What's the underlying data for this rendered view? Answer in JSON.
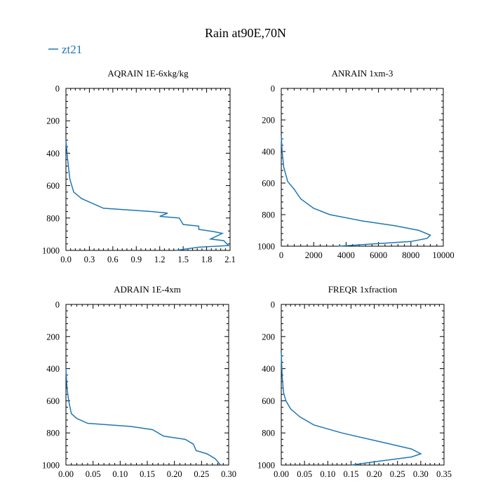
{
  "title": "Rain at90E,70N",
  "legend": {
    "label": "zt21",
    "color": "#1f77b4"
  },
  "chart_data": [
    {
      "type": "line",
      "title": "AQRAIN  1E-6xkg/kg",
      "xlim": [
        0,
        2.1
      ],
      "ylim": [
        1000,
        0
      ],
      "xticks": [
        0,
        0.3,
        0.6,
        0.9,
        1.2,
        1.5,
        1.8,
        2.1
      ],
      "xtick_labels": [
        "0.0",
        "0.3",
        "0.6",
        "0.9",
        "1.2",
        "1.5",
        "1.8",
        "2.1"
      ],
      "yticks": [
        0,
        200,
        400,
        600,
        800,
        1000
      ],
      "ytick_labels": [
        "0",
        "200",
        "400",
        "600",
        "800",
        "1000"
      ],
      "series": [
        {
          "name": "zt21",
          "x": [
            0,
            0.02,
            0.05,
            0.1,
            0.2,
            0.48,
            1.1,
            1.3,
            1.2,
            1.45,
            1.5,
            1.7,
            1.7,
            1.9,
            2.0,
            1.85,
            2.02,
            2.08,
            1.7,
            1.4
          ],
          "y": [
            320,
            430,
            560,
            640,
            680,
            740,
            760,
            770,
            790,
            800,
            840,
            850,
            870,
            885,
            895,
            930,
            940,
            970,
            980,
            1000
          ]
        }
      ]
    },
    {
      "type": "line",
      "title": "ANRAIN  1xm-3",
      "xlim": [
        0,
        10000
      ],
      "ylim": [
        1000,
        0
      ],
      "xticks": [
        0,
        2000,
        4000,
        6000,
        8000,
        10000
      ],
      "xtick_labels": [
        "0",
        "2000",
        "4000",
        "6000",
        "8000",
        "10000"
      ],
      "yticks": [
        0,
        200,
        400,
        600,
        800,
        1000
      ],
      "ytick_labels": [
        "0",
        "200",
        "400",
        "600",
        "800",
        "1000"
      ],
      "series": [
        {
          "name": "zt21",
          "x": [
            0,
            50,
            150,
            400,
            800,
            1200,
            2000,
            3000,
            5000,
            7000,
            8500,
            9200,
            9000,
            8000,
            5000,
            3500
          ],
          "y": [
            300,
            400,
            500,
            590,
            640,
            700,
            760,
            800,
            840,
            870,
            900,
            930,
            950,
            970,
            990,
            1000
          ]
        }
      ]
    },
    {
      "type": "line",
      "title": "ADRAIN  1E-4xm",
      "xlim": [
        0,
        0.3
      ],
      "ylim": [
        1000,
        0
      ],
      "xticks": [
        0,
        0.05,
        0.1,
        0.15,
        0.2,
        0.25,
        0.3
      ],
      "xtick_labels": [
        "0.00",
        "0.05",
        "0.10",
        "0.15",
        "0.20",
        "0.25",
        "0.30"
      ],
      "yticks": [
        0,
        200,
        400,
        600,
        800,
        1000
      ],
      "ytick_labels": [
        "0",
        "200",
        "400",
        "600",
        "800",
        "1000"
      ],
      "series": [
        {
          "name": "zt21",
          "x": [
            0,
            0.002,
            0.005,
            0.01,
            0.02,
            0.04,
            0.12,
            0.16,
            0.18,
            0.22,
            0.235,
            0.24,
            0.26,
            0.275,
            0.285
          ],
          "y": [
            400,
            520,
            600,
            680,
            710,
            740,
            760,
            780,
            820,
            840,
            870,
            910,
            930,
            960,
            1000
          ]
        }
      ]
    },
    {
      "type": "line",
      "title": "FREQR  1xfraction",
      "xlim": [
        0,
        0.35
      ],
      "ylim": [
        1000,
        0
      ],
      "xticks": [
        0,
        0.05,
        0.1,
        0.15,
        0.2,
        0.25,
        0.3,
        0.35
      ],
      "xtick_labels": [
        "0.00",
        "0.05",
        "0.10",
        "0.15",
        "0.20",
        "0.25",
        "0.30",
        "0.35"
      ],
      "yticks": [
        0,
        200,
        400,
        600,
        800,
        1000
      ],
      "ytick_labels": [
        "0",
        "200",
        "400",
        "600",
        "800",
        "1000"
      ],
      "series": [
        {
          "name": "zt21",
          "x": [
            0,
            0.002,
            0.005,
            0.01,
            0.02,
            0.04,
            0.07,
            0.13,
            0.22,
            0.28,
            0.3,
            0.28,
            0.2,
            0.15
          ],
          "y": [
            300,
            450,
            550,
            600,
            650,
            700,
            750,
            800,
            860,
            900,
            930,
            950,
            980,
            1000
          ]
        }
      ]
    }
  ]
}
